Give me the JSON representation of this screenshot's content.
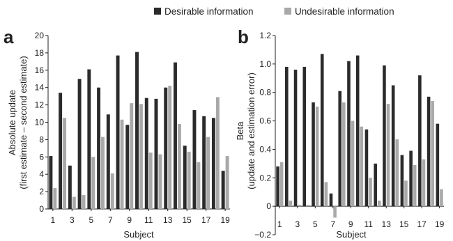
{
  "legend": {
    "items": [
      {
        "label": "Desirable information",
        "color": "#2b2b2b"
      },
      {
        "label": "Undesirable information",
        "color": "#a9a9a9"
      }
    ]
  },
  "chart_data": [
    {
      "type": "bar",
      "panel": "a",
      "xlabel": "Subject",
      "ylabel_line1": "Absolute update",
      "ylabel_line2": "(first estimate – second estimate)",
      "ylim": [
        0,
        20
      ],
      "yticks": [
        "0",
        "2",
        "4",
        "6",
        "8",
        "10",
        "12",
        "14",
        "16",
        "18",
        "20"
      ],
      "categories": [
        "1",
        "2",
        "3",
        "4",
        "5",
        "6",
        "7",
        "8",
        "9",
        "10",
        "11",
        "12",
        "13",
        "14",
        "15",
        "16",
        "17",
        "18",
        "19"
      ],
      "xtick_labels": [
        "1",
        "3",
        "5",
        "7",
        "9",
        "11",
        "13",
        "15",
        "17",
        "19"
      ],
      "series": [
        {
          "name": "Desirable information",
          "color": "#2b2b2b",
          "values": [
            6.1,
            13.4,
            5.0,
            15.0,
            16.1,
            14.0,
            10.9,
            17.7,
            9.7,
            18.1,
            12.8,
            12.7,
            14.0,
            16.9,
            7.3,
            11.4,
            10.7,
            10.5,
            4.4
          ]
        },
        {
          "name": "Undesirable information",
          "color": "#a9a9a9",
          "values": [
            2.4,
            10.5,
            1.4,
            1.6,
            6.0,
            8.3,
            4.1,
            10.3,
            12.2,
            12.1,
            6.5,
            6.3,
            14.2,
            9.8,
            6.6,
            5.4,
            8.3,
            12.9,
            6.1
          ]
        }
      ]
    },
    {
      "type": "bar",
      "panel": "b",
      "xlabel": "Subject",
      "ylabel_line1": "Beta",
      "ylabel_line2": "(update and estimation error)",
      "ylim": [
        -0.2,
        1.2
      ],
      "yticks": [
        "−0.2",
        "0",
        "0.2",
        "0.4",
        "0.6",
        "0.8",
        "1.0",
        "1.2"
      ],
      "categories": [
        "1",
        "2",
        "3",
        "4",
        "5",
        "6",
        "7",
        "8",
        "9",
        "10",
        "11",
        "12",
        "13",
        "14",
        "15",
        "16",
        "17",
        "18",
        "19"
      ],
      "xtick_labels": [
        "1",
        "3",
        "5",
        "7",
        "9",
        "11",
        "13",
        "15",
        "17",
        "19"
      ],
      "series": [
        {
          "name": "Desirable information",
          "color": "#2b2b2b",
          "values": [
            0.28,
            0.98,
            0.96,
            0.98,
            0.73,
            1.07,
            0.09,
            0.81,
            1.02,
            1.06,
            0.54,
            0.3,
            0.99,
            0.85,
            0.36,
            0.39,
            0.92,
            0.77,
            0.58
          ]
        },
        {
          "name": "Undesirable information",
          "color": "#a9a9a9",
          "values": [
            0.31,
            0.04,
            0.01,
            0.01,
            0.7,
            0.17,
            -0.08,
            0.73,
            0.6,
            0.56,
            0.2,
            0.04,
            0.72,
            0.47,
            0.18,
            0.29,
            0.33,
            0.74,
            0.12
          ]
        }
      ]
    }
  ]
}
